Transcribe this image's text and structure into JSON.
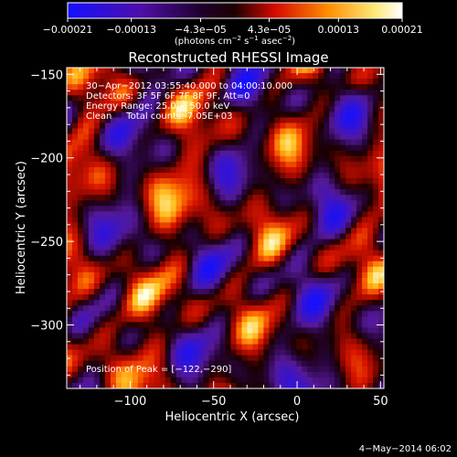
{
  "chart_data": {
    "type": "heatmap",
    "title": "Reconstructed RHESSI Image",
    "xlabel": "Heliocentric X (arcsec)",
    "ylabel": "Heliocentric Y (arcsec)",
    "xlim": [
      -138,
      52
    ],
    "ylim": [
      -338,
      -146
    ],
    "x_ticks": [
      -100,
      -50,
      0,
      50
    ],
    "y_ticks": [
      -300,
      -250,
      -200,
      -150
    ],
    "x_tick_labels": [
      "−100",
      "−50",
      "0",
      "50"
    ],
    "y_tick_labels": [
      "−300",
      "−250",
      "−200",
      "−150"
    ],
    "colorbar": {
      "range": [
        -0.00021,
        0.00021
      ],
      "tick_labels": [
        "−0.00021",
        "−0.00013",
        "−4.3e−05",
        "4.3e−05",
        "0.00013",
        "0.00021"
      ],
      "units_prefix": "(photons cm",
      "units_exp1": "−2",
      "units_mid": " s",
      "units_exp2": "−1",
      "units_mid2": " asec",
      "units_exp3": "−2",
      "units_suffix": ")"
    },
    "annotations": [
      "30−Apr−2012 03:55:40.000 to 04:00:10.000",
      "Detectors: 3F 5F 6F 7F 8F 9F, Att=0",
      "Energy Range: 25.0 − 50.0 keV",
      "Clean     Total counts: 7.05E+03"
    ],
    "peak_label": "Position of Peak = [−122,−290]",
    "peak": [
      -122,
      -290
    ],
    "colors": {
      "background": "#000000",
      "text": "#ffffff"
    }
  },
  "footer": {
    "date": "4−May−2014 06:02"
  }
}
